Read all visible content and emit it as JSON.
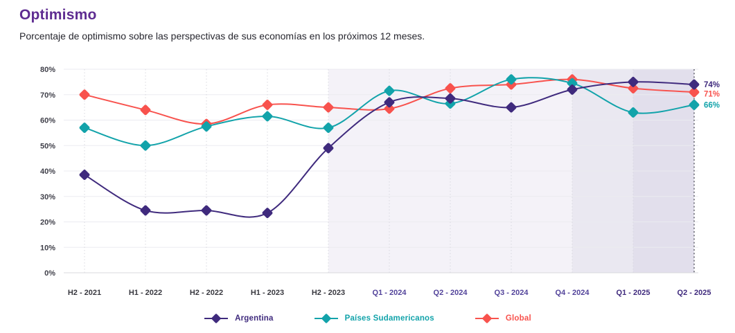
{
  "header": {
    "title": "Optimismo",
    "subtitle": "Porcentaje de optimismo sobre las perspectivas de sus economías en los próximos 12 meses."
  },
  "colors": {
    "title": "#5e2c91",
    "subtitle_text": "#26262e",
    "y_tick_text": "#40404a",
    "x_tick_dark": "#38383f",
    "x_tick_purple": "#52439a",
    "x_tick_bold": "#3f2a7d",
    "h_gridline": "#ebebf0",
    "baseline": "#d8d8dd",
    "v_gridline": "#d8d8df",
    "forecast_dashed_line": "#54545f",
    "highlight_band_1": "#f4f2f8",
    "highlight_band_2": "#eae8f1",
    "highlight_band_3": "#e2dfec"
  },
  "chart_data": {
    "type": "line",
    "title": "Optimismo",
    "xlabel": "",
    "ylabel": "",
    "ylim": [
      0,
      80
    ],
    "yticks": [
      "0%",
      "10%",
      "20%",
      "30%",
      "40%",
      "50%",
      "60%",
      "70%",
      "80%"
    ],
    "grid": true,
    "legend_position": "bottom",
    "categories": [
      "H2 - 2021",
      "H1 - 2022",
      "H2 - 2022",
      "H1 - 2023",
      "H2 - 2023",
      "Q1 - 2024",
      "Q2 - 2024",
      "Q3 - 2024",
      "Q4 - 2024",
      "Q1 - 2025",
      "Q2 - 2025"
    ],
    "category_styles": [
      "dark",
      "dark",
      "dark",
      "dark",
      "dark",
      "purple",
      "purple",
      "purple",
      "purple",
      "bold",
      "bold"
    ],
    "series": [
      {
        "name": "Global",
        "color": "#f8524d",
        "end_label": "71%",
        "values": [
          70,
          64,
          58.5,
          66,
          65,
          64.5,
          72.5,
          74,
          76,
          72.5,
          71
        ]
      },
      {
        "name": "Países Sudamericanos",
        "color": "#12a3aa",
        "end_label": "66%",
        "values": [
          57,
          50,
          57.5,
          61.5,
          57,
          71.5,
          66.5,
          76,
          74.5,
          63,
          66
        ]
      },
      {
        "name": "Argentina",
        "color": "#3f2a7d",
        "end_label": "74%",
        "values": [
          38.5,
          24.5,
          24.5,
          23.5,
          49,
          67,
          68.5,
          65,
          72,
          75,
          74
        ]
      }
    ],
    "highlight_bands": [
      {
        "from_index": 4,
        "to_index": 8,
        "color_key": "highlight_band_1"
      },
      {
        "from_index": 8,
        "to_index": 9,
        "color_key": "highlight_band_2"
      },
      {
        "from_index": 9,
        "to_index": 10,
        "color_key": "highlight_band_3"
      }
    ],
    "forecast_line_index": 10
  },
  "legend": {
    "items": [
      {
        "label": "Argentina",
        "color": "#3f2a7d"
      },
      {
        "label": "Países Sudamericanos",
        "color": "#12a3aa"
      },
      {
        "label": "Global",
        "color": "#f8524d"
      }
    ]
  }
}
